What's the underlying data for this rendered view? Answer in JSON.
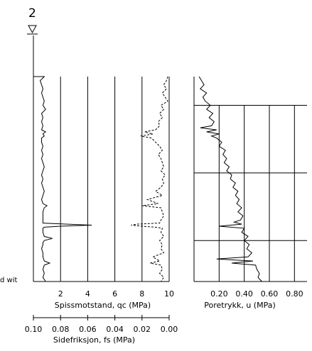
{
  "borehole_id": "2",
  "cut_label": "d wit",
  "colors": {
    "line": "#000000",
    "background": "#ffffff"
  },
  "chart_data": [
    {
      "type": "line",
      "name_label": "cone-resistance-friction-panel",
      "xlabel": "Spissmotstand, qc (MPa)",
      "xticks": [
        2,
        4,
        6,
        8,
        10
      ],
      "xlim": [
        0,
        10
      ],
      "grid": true,
      "series": [
        {
          "label": "qc",
          "style": "solid",
          "depth": [
            0.0,
            0.02,
            0.04,
            0.06,
            0.08,
            0.1,
            0.12,
            0.14,
            0.16,
            0.18,
            0.2,
            0.22,
            0.24,
            0.26,
            0.27,
            0.28,
            0.29,
            0.3,
            0.32,
            0.34,
            0.36,
            0.38,
            0.4,
            0.42,
            0.44,
            0.46,
            0.48,
            0.5,
            0.52,
            0.54,
            0.56,
            0.58,
            0.6,
            0.62,
            0.63,
            0.64,
            0.66,
            0.68,
            0.7,
            0.715,
            0.72,
            0.725,
            0.73,
            0.735,
            0.74,
            0.76,
            0.78,
            0.79,
            0.8,
            0.81,
            0.82,
            0.84,
            0.86,
            0.88,
            0.9,
            0.91,
            0.92,
            0.94,
            0.96,
            0.98,
            1.0
          ],
          "values": [
            0.8,
            0.5,
            0.6,
            0.7,
            0.6,
            0.7,
            0.8,
            0.7,
            0.9,
            0.6,
            0.7,
            0.6,
            0.7,
            0.6,
            0.9,
            0.7,
            0.8,
            0.6,
            0.6,
            0.7,
            0.6,
            0.7,
            0.6,
            0.7,
            0.8,
            0.7,
            0.6,
            0.7,
            0.6,
            0.7,
            0.8,
            0.7,
            0.6,
            0.7,
            1.0,
            0.8,
            0.7,
            0.7,
            0.7,
            0.7,
            2.5,
            4.3,
            2.0,
            0.8,
            0.7,
            0.7,
            0.8,
            1.4,
            0.8,
            0.7,
            0.7,
            0.6,
            0.7,
            0.7,
            0.8,
            1.2,
            0.8,
            0.7,
            0.8,
            0.7,
            0.9
          ]
        },
        {
          "label": "fs",
          "style": "dashed",
          "depth": [
            0.0,
            0.02,
            0.04,
            0.06,
            0.08,
            0.1,
            0.12,
            0.14,
            0.16,
            0.18,
            0.2,
            0.22,
            0.24,
            0.26,
            0.27,
            0.28,
            0.29,
            0.3,
            0.32,
            0.34,
            0.36,
            0.38,
            0.4,
            0.42,
            0.44,
            0.46,
            0.48,
            0.5,
            0.52,
            0.54,
            0.56,
            0.58,
            0.6,
            0.62,
            0.63,
            0.64,
            0.66,
            0.68,
            0.7,
            0.715,
            0.72,
            0.725,
            0.73,
            0.735,
            0.74,
            0.76,
            0.78,
            0.8,
            0.82,
            0.84,
            0.86,
            0.88,
            0.9,
            0.91,
            0.92,
            0.94,
            0.96,
            0.98,
            1.0
          ],
          "values": [
            9.9,
            9.8,
            9.6,
            9.8,
            9.5,
            9.7,
            9.9,
            9.4,
            9.6,
            9.3,
            9.5,
            9.2,
            9.3,
            9.0,
            8.2,
            8.8,
            7.9,
            8.7,
            9.0,
            9.3,
            9.5,
            9.2,
            9.4,
            9.5,
            9.6,
            9.4,
            9.7,
            9.5,
            9.6,
            9.4,
            9.0,
            9.5,
            8.4,
            9.2,
            8.0,
            9.4,
            9.5,
            9.6,
            9.4,
            9.3,
            7.6,
            7.2,
            8.0,
            9.0,
            9.5,
            9.4,
            9.6,
            9.3,
            9.5,
            9.4,
            9.6,
            8.8,
            9.3,
            8.6,
            9.4,
            9.5,
            9.3,
            9.6,
            9.4
          ]
        }
      ]
    },
    {
      "type": "line",
      "name_label": "pore-pressure-panel",
      "xlabel": "Poretrykk, u (MPa)",
      "xticks": [
        "0.20",
        "0.40",
        "0.60",
        "0.80"
      ],
      "xlim": [
        0,
        0.9
      ],
      "grid": true,
      "series": [
        {
          "label": "u",
          "style": "solid",
          "depth": [
            0.0,
            0.02,
            0.04,
            0.06,
            0.08,
            0.1,
            0.12,
            0.14,
            0.16,
            0.18,
            0.2,
            0.22,
            0.24,
            0.25,
            0.26,
            0.27,
            0.28,
            0.29,
            0.3,
            0.32,
            0.34,
            0.36,
            0.38,
            0.4,
            0.42,
            0.44,
            0.46,
            0.48,
            0.5,
            0.52,
            0.54,
            0.56,
            0.58,
            0.6,
            0.62,
            0.64,
            0.66,
            0.68,
            0.7,
            0.71,
            0.72,
            0.73,
            0.74,
            0.76,
            0.78,
            0.8,
            0.82,
            0.84,
            0.86,
            0.88,
            0.89,
            0.9,
            0.91,
            0.92,
            0.94,
            0.96,
            0.98,
            1.0
          ],
          "values": [
            0.04,
            0.06,
            0.08,
            0.05,
            0.1,
            0.07,
            0.09,
            0.13,
            0.1,
            0.15,
            0.12,
            0.16,
            0.14,
            0.05,
            0.18,
            0.1,
            0.2,
            0.14,
            0.18,
            0.22,
            0.2,
            0.25,
            0.23,
            0.26,
            0.24,
            0.28,
            0.26,
            0.3,
            0.29,
            0.33,
            0.31,
            0.35,
            0.33,
            0.36,
            0.34,
            0.38,
            0.35,
            0.39,
            0.37,
            0.32,
            0.38,
            0.2,
            0.4,
            0.38,
            0.43,
            0.4,
            0.44,
            0.42,
            0.46,
            0.43,
            0.18,
            0.47,
            0.3,
            0.49,
            0.5,
            0.52,
            0.51,
            0.54
          ]
        }
      ]
    }
  ],
  "sleeve_axis": {
    "xlabel": "Sidefriksjon, fs (MPa)",
    "xticks": [
      "0.10",
      "0.08",
      "0.06",
      "0.04",
      "0.02",
      "0.00"
    ]
  }
}
